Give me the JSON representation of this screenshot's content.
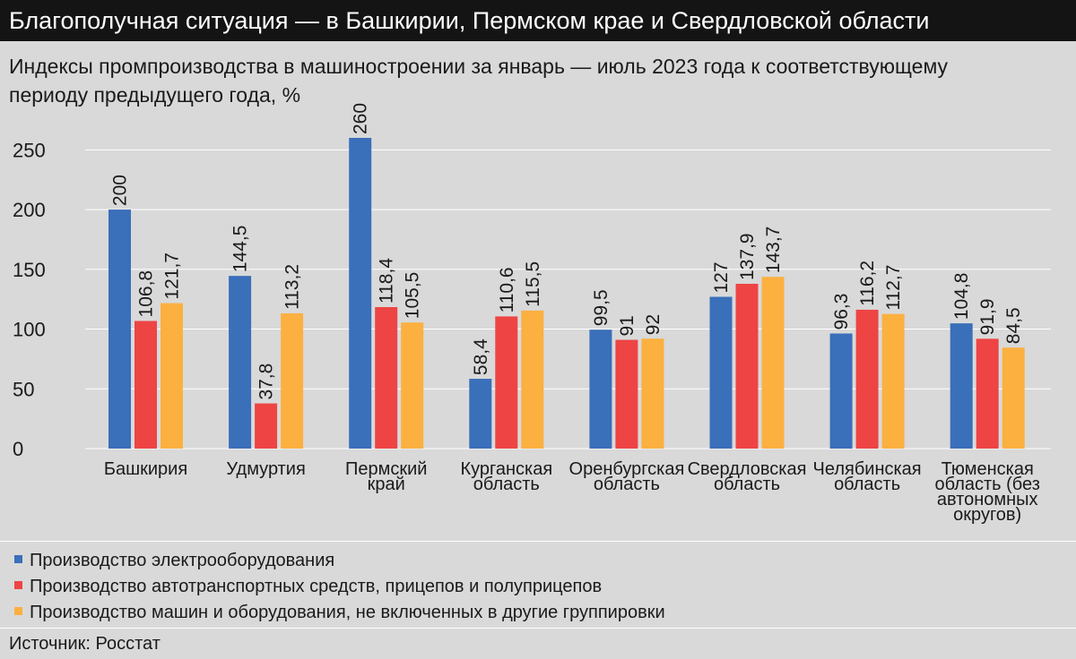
{
  "title": "Благополучная ситуация — в Башкирии, Пермском крае и Свердловской области",
  "subtitle": "Индексы промпроизводства в машиностроении за январь — июль 2023 года к соответствующему периоду предыдущего года, %",
  "source": "Источник: Росстат",
  "colors": {
    "series1": "#3a6fba",
    "series2": "#ee4444",
    "series3": "#fbb040",
    "grid": "#ffffff",
    "text": "#1a1a1a"
  },
  "chart_data": {
    "type": "bar",
    "categories": [
      [
        "Башкирия"
      ],
      [
        "Удмуртия"
      ],
      [
        "Пермский",
        "край"
      ],
      [
        "Курганская",
        "область"
      ],
      [
        "Оренбургская",
        "область"
      ],
      [
        "Свердловская",
        "область"
      ],
      [
        "Челябинская",
        "область"
      ],
      [
        "Тюменская",
        "область (без",
        "автономных",
        "округов)"
      ]
    ],
    "series": [
      {
        "name": "Производство электрооборудования",
        "values": [
          200,
          144.5,
          260,
          58.4,
          99.5,
          127,
          96.3,
          104.8
        ],
        "labels": [
          "200",
          "144,5",
          "260",
          "58,4",
          "99,5",
          "127",
          "96,3",
          "104,8"
        ]
      },
      {
        "name": "Производство автотранспортных средств, прицепов и полуприцепов",
        "values": [
          106.8,
          37.8,
          118.4,
          110.6,
          91,
          137.9,
          116.2,
          91.9
        ],
        "labels": [
          "106,8",
          "37,8",
          "118,4",
          "110,6",
          "91",
          "137,9",
          "116,2",
          "91,9"
        ]
      },
      {
        "name": "Производство машин и оборудования, не включенных в другие группировки",
        "values": [
          121.7,
          113.2,
          105.5,
          115.5,
          92,
          143.7,
          112.7,
          84.5
        ],
        "labels": [
          "121,7",
          "113,2",
          "105,5",
          "115,5",
          "92",
          "143,7",
          "112,7",
          "84,5"
        ]
      }
    ],
    "yticks": [
      "0",
      "50",
      "100",
      "150",
      "200",
      "250"
    ],
    "ytick_values": [
      0,
      50,
      100,
      150,
      200,
      250
    ],
    "ylim": [
      0,
      260
    ],
    "grid": true,
    "legend": "bottom"
  }
}
